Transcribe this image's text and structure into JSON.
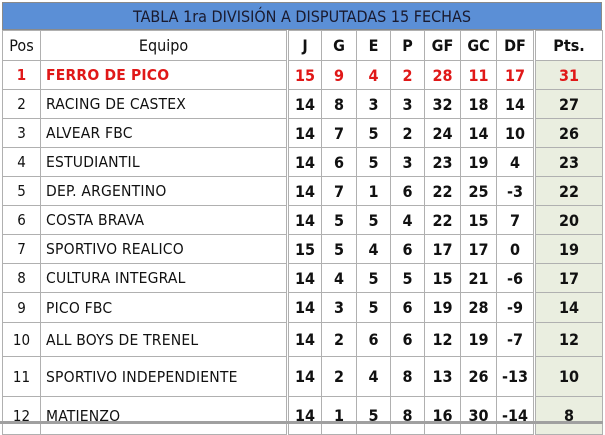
{
  "title": "TABLA 1ra DIVISIÓN A DISPUTADAS 15 FECHAS",
  "headers": [
    "Pos",
    "Equipo",
    "J",
    "G",
    "E",
    "P",
    "GF",
    "GC",
    "DF",
    "Pts."
  ],
  "colors": {
    "title_bg": "#5b8fd6",
    "leader_text": "#e01818",
    "pts_bg": "#eaeee0"
  },
  "rows": [
    [
      "1",
      "FERRO DE PICO",
      "15",
      "9",
      "4",
      "2",
      "28",
      "11",
      "17",
      "31"
    ],
    [
      "2",
      "RACING DE CASTEX",
      "14",
      "8",
      "3",
      "3",
      "32",
      "18",
      "14",
      "27"
    ],
    [
      "3",
      "ALVEAR FBC",
      "14",
      "7",
      "5",
      "2",
      "24",
      "14",
      "10",
      "26"
    ],
    [
      "4",
      "ESTUDIANTIL",
      "14",
      "6",
      "5",
      "3",
      "23",
      "19",
      "4",
      "23"
    ],
    [
      "5",
      "DEP. ARGENTINO",
      "14",
      "7",
      "1",
      "6",
      "22",
      "25",
      "-3",
      "22"
    ],
    [
      "6",
      "COSTA BRAVA",
      "14",
      "5",
      "5",
      "4",
      "22",
      "15",
      "7",
      "20"
    ],
    [
      "7",
      "SPORTIVO REALICO",
      "15",
      "5",
      "4",
      "6",
      "17",
      "17",
      "0",
      "19"
    ],
    [
      "8",
      "CULTURA INTEGRAL",
      "14",
      "4",
      "5",
      "5",
      "15",
      "21",
      "-6",
      "17"
    ],
    [
      "9",
      "PICO FBC",
      "14",
      "3",
      "5",
      "6",
      "19",
      "28",
      "-9",
      "14"
    ],
    [
      "10",
      "ALL BOYS DE TRENEL",
      "14",
      "2",
      "6",
      "6",
      "12",
      "19",
      "-7",
      "12"
    ],
    [
      "11",
      "SPORTIVO INDEPENDIENTE",
      "14",
      "2",
      "4",
      "8",
      "13",
      "26",
      "-13",
      "10"
    ],
    [
      "12",
      "MATIENZO",
      "14",
      "1",
      "5",
      "8",
      "16",
      "30",
      "-14",
      "8"
    ]
  ]
}
